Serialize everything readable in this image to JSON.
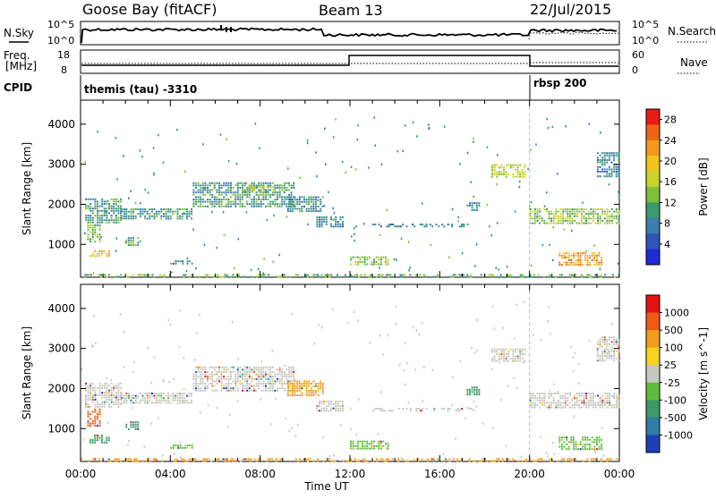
{
  "header": {
    "station": "Goose Bay (fitACF)",
    "beam": "Beam 13",
    "date": "22/Jul/2015"
  },
  "strip_labels": {
    "nsky": "N.Sky",
    "nsearch": "N.Search",
    "freq_a": "Freq.",
    "freq_b": "[MHz]",
    "nave": "Nave",
    "cpid": "CPID",
    "nsky_top": "10^5",
    "nsky_bottom": "10^0",
    "nsearch_top": "10^5",
    "nsearch_bottom": "10^0",
    "freq_top": "18",
    "freq_bottom": "8",
    "nave_top": "60",
    "nave_bottom": "0"
  },
  "cpid_segments": [
    {
      "label": "themis (tau) -3310",
      "start_hour": 0
    },
    {
      "label": "rbsp 200",
      "start_hour": 20
    }
  ],
  "chart_data": [
    {
      "type": "heatmap",
      "panel": "power",
      "ylabel": "Slant Range [km]",
      "colorbar_label": "Power [dB]",
      "xlabel": "",
      "x_ticks": [
        "00:00",
        "04:00",
        "08:00",
        "12:00",
        "16:00",
        "20:00",
        "00:00"
      ],
      "x_range_hours": [
        0,
        24
      ],
      "y_ticks": [
        1000,
        2000,
        3000,
        4000
      ],
      "ylim": [
        180,
        4600
      ],
      "colorbar_ticks": [
        4,
        8,
        12,
        16,
        20,
        24,
        28
      ],
      "colorbar_range": [
        0,
        30
      ],
      "colorbar_colors": [
        "#1e2bd6",
        "#2f55b9",
        "#3c7fae",
        "#3a9a6e",
        "#7fbe3a",
        "#c9d32b",
        "#f1c417",
        "#f29a1a",
        "#ee6614",
        "#e81c14"
      ],
      "clusters": [
        {
          "t0": 0.2,
          "t1": 1.8,
          "r0": 1550,
          "r1": 2150,
          "value": 10
        },
        {
          "t0": 0.3,
          "t1": 0.9,
          "r0": 1050,
          "r1": 1500,
          "value": 12
        },
        {
          "t0": 0.4,
          "t1": 1.3,
          "r0": 700,
          "r1": 850,
          "value": 18
        },
        {
          "t0": 2.0,
          "t1": 2.6,
          "r0": 1000,
          "r1": 1180,
          "value": 10
        },
        {
          "t0": 1.8,
          "t1": 5.0,
          "r0": 1650,
          "r1": 1900,
          "value": 10
        },
        {
          "t0": 5.0,
          "t1": 9.5,
          "r0": 1950,
          "r1": 2550,
          "value": 10
        },
        {
          "t0": 7.2,
          "t1": 8.6,
          "r0": 2300,
          "r1": 2450,
          "value": 15
        },
        {
          "t0": 9.2,
          "t1": 10.8,
          "r0": 1800,
          "r1": 2200,
          "value": 9
        },
        {
          "t0": 10.5,
          "t1": 11.7,
          "r0": 1450,
          "r1": 1700,
          "value": 8
        },
        {
          "t0": 4.0,
          "t1": 5.0,
          "r0": 500,
          "r1": 600,
          "value": 8
        },
        {
          "t0": 12.0,
          "t1": 13.7,
          "r0": 480,
          "r1": 700,
          "value": 13
        },
        {
          "t0": 13.0,
          "t1": 17.5,
          "r0": 1450,
          "r1": 1520,
          "value": 8
        },
        {
          "t0": 17.2,
          "t1": 17.8,
          "r0": 1850,
          "r1": 2050,
          "value": 8
        },
        {
          "t0": 18.3,
          "t1": 19.8,
          "r0": 2700,
          "r1": 3000,
          "value": 16
        },
        {
          "t0": 20.0,
          "t1": 24.0,
          "r0": 1500,
          "r1": 1900,
          "value": 14
        },
        {
          "t0": 21.3,
          "t1": 23.2,
          "r0": 500,
          "r1": 800,
          "value": 22
        },
        {
          "t0": 23.0,
          "t1": 24.0,
          "r0": 2700,
          "r1": 3300,
          "value": 8
        },
        {
          "t0": 0.0,
          "t1": 24.0,
          "r0": 200,
          "r1": 260,
          "value": 12
        }
      ]
    },
    {
      "type": "heatmap",
      "panel": "velocity",
      "ylabel": "Slant Range [km]",
      "colorbar_label": "Velocity [m s^-1]",
      "xlabel": "Time UT",
      "x_ticks": [
        "00:00",
        "04:00",
        "08:00",
        "12:00",
        "16:00",
        "20:00",
        "00:00"
      ],
      "x_range_hours": [
        0,
        24
      ],
      "y_ticks": [
        1000,
        2000,
        3000,
        4000
      ],
      "ylim": [
        180,
        4600
      ],
      "colorbar_ticks": [
        "1000",
        "500",
        "100",
        "25",
        "-25",
        "-100",
        "-500",
        "-1000"
      ],
      "colorbar_colors": [
        "#1f3fb2",
        "#2f7da6",
        "#3d9a68",
        "#5fbd3c",
        "#c8c8c0",
        "#f7d21e",
        "#f29e1c",
        "#ee5a16",
        "#e41212"
      ],
      "clusters": [
        {
          "t0": 0.2,
          "t1": 1.8,
          "r0": 1550,
          "r1": 2150,
          "value": "#c8c8c0"
        },
        {
          "t0": 0.3,
          "t1": 0.9,
          "r0": 1050,
          "r1": 1500,
          "value": "#ee5a16"
        },
        {
          "t0": 0.4,
          "t1": 1.3,
          "r0": 650,
          "r1": 850,
          "value": "#3d9a68"
        },
        {
          "t0": 2.0,
          "t1": 2.6,
          "r0": 1000,
          "r1": 1180,
          "value": "#3d9a68"
        },
        {
          "t0": 1.8,
          "t1": 5.0,
          "r0": 1650,
          "r1": 1900,
          "value": "#c8c8c0"
        },
        {
          "t0": 5.0,
          "t1": 9.5,
          "r0": 1950,
          "r1": 2550,
          "value": "#c8c8c0"
        },
        {
          "t0": 9.2,
          "t1": 10.8,
          "r0": 1800,
          "r1": 2200,
          "value": "#f29e1c"
        },
        {
          "t0": 10.5,
          "t1": 11.7,
          "r0": 1450,
          "r1": 1700,
          "value": "#c8c8c0"
        },
        {
          "t0": 4.0,
          "t1": 5.0,
          "r0": 500,
          "r1": 600,
          "value": "#5fbd3c"
        },
        {
          "t0": 12.0,
          "t1": 13.7,
          "r0": 480,
          "r1": 700,
          "value": "#5fbd3c"
        },
        {
          "t0": 13.0,
          "t1": 17.5,
          "r0": 1450,
          "r1": 1520,
          "value": "#c8c8c0"
        },
        {
          "t0": 17.2,
          "t1": 17.8,
          "r0": 1850,
          "r1": 2050,
          "value": "#3d9a68"
        },
        {
          "t0": 18.3,
          "t1": 19.8,
          "r0": 2700,
          "r1": 3000,
          "value": "#c8c8c0"
        },
        {
          "t0": 20.0,
          "t1": 24.0,
          "r0": 1500,
          "r1": 1900,
          "value": "#c8c8c0"
        },
        {
          "t0": 21.3,
          "t1": 23.2,
          "r0": 500,
          "r1": 800,
          "value": "#5fbd3c"
        },
        {
          "t0": 23.0,
          "t1": 24.0,
          "r0": 2700,
          "r1": 3300,
          "value": "#c8c8c0"
        },
        {
          "t0": 0.0,
          "t1": 24.0,
          "r0": 200,
          "r1": 260,
          "value": "#f29e1c"
        }
      ]
    }
  ]
}
